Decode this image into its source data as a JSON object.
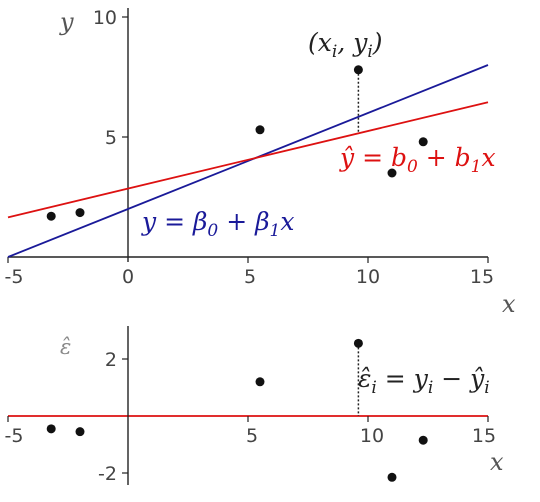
{
  "chart_data": [
    {
      "type": "scatter",
      "xlabel": "x",
      "ylabel": "y",
      "xlim": [
        -5,
        15
      ],
      "ylim": [
        0,
        10
      ],
      "x_ticks": [
        "-5",
        "0",
        "5",
        "10",
        "15"
      ],
      "y_ticks": [
        "5",
        "10"
      ],
      "points": [
        {
          "x": -3.2,
          "y": 1.7
        },
        {
          "x": -2.0,
          "y": 1.85
        },
        {
          "x": 5.5,
          "y": 5.3
        },
        {
          "x": 9.6,
          "y": 7.8
        },
        {
          "x": 11.0,
          "y": 3.5
        },
        {
          "x": 12.3,
          "y": 4.8
        }
      ],
      "lines": [
        {
          "label": "y = β0 + β1x",
          "color": "#1a1a99",
          "intercept": 2.0,
          "slope": 0.4
        },
        {
          "label": "ŷ = b0 + b1x",
          "color": "#dd1111",
          "intercept": 2.85,
          "slope": 0.24
        }
      ],
      "highlight": {
        "label": "(xi, yi)",
        "x": 9.6,
        "y": 7.8
      }
    },
    {
      "type": "scatter",
      "xlabel": "x",
      "ylabel": "ε̂",
      "xlim": [
        -5,
        15
      ],
      "ylim": [
        -2.2,
        3.8
      ],
      "x_ticks": [
        "-5",
        "5",
        "10",
        "15"
      ],
      "y_ticks": [
        "2",
        "-2"
      ],
      "zero_line_color": "#dd1111",
      "residuals": [
        {
          "x": -3.2,
          "y": -0.45
        },
        {
          "x": -2.0,
          "y": -0.55
        },
        {
          "x": 5.5,
          "y": 1.2
        },
        {
          "x": 9.6,
          "y": 2.55
        },
        {
          "x": 11.0,
          "y": -2.15
        },
        {
          "x": 12.3,
          "y": -0.85
        }
      ],
      "annotation": "ε̂i = yi − ŷi"
    }
  ]
}
